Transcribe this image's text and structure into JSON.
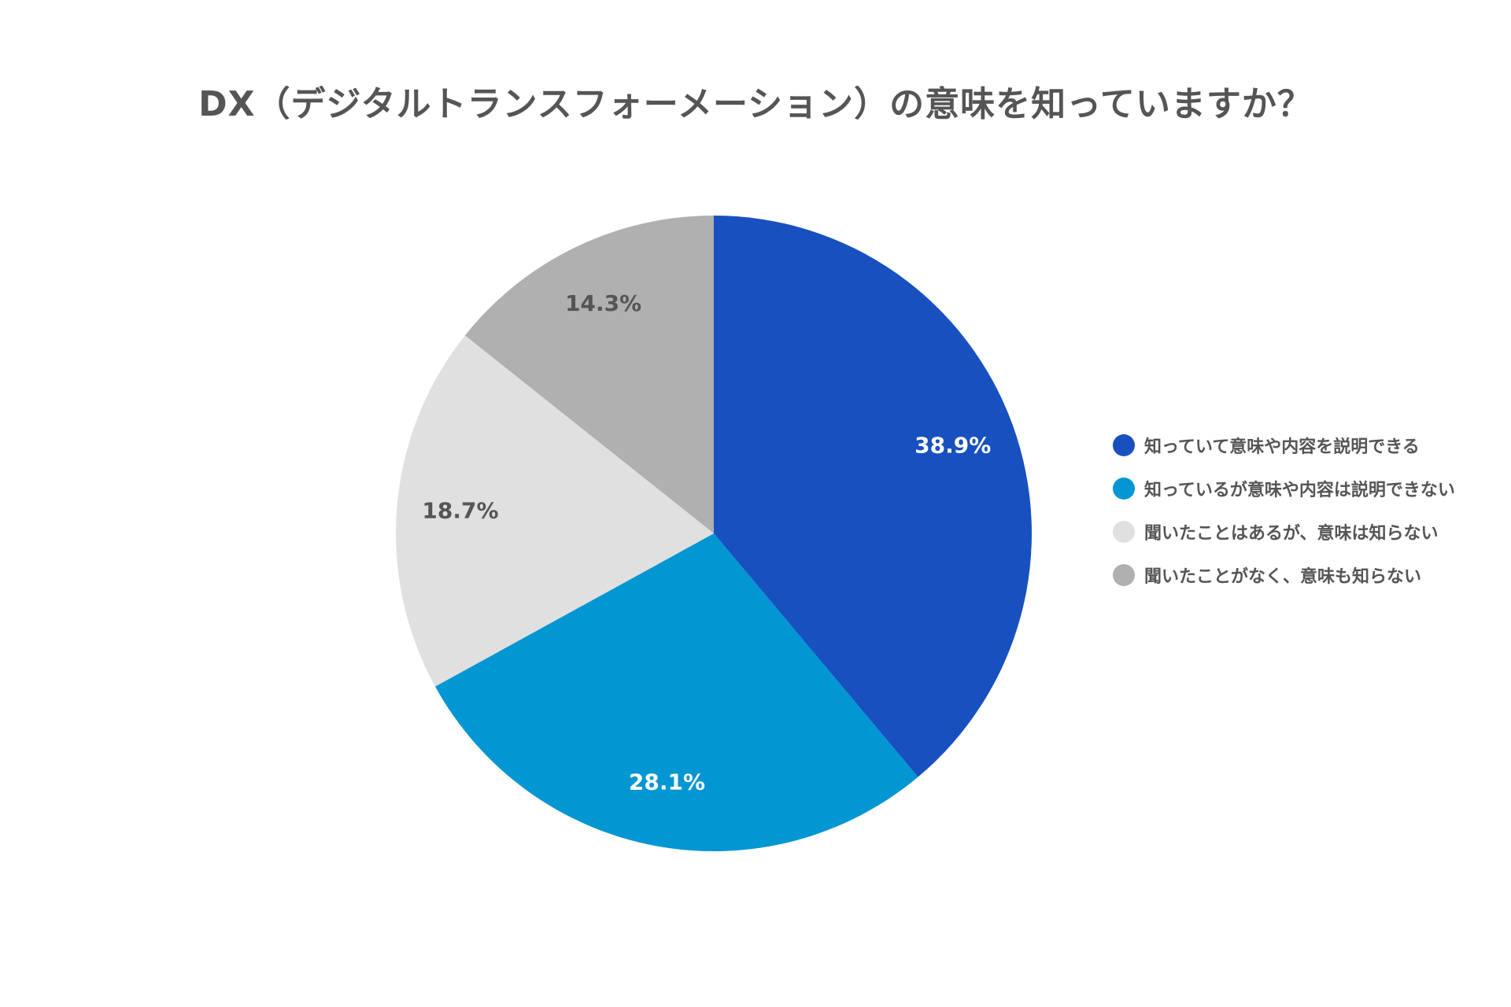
{
  "chart_data": {
    "type": "pie",
    "title": "DX（デジタルトランスフォーメーション）の意味を知っていますか？",
    "categories": [
      "知っていて意味や内容を説明できる",
      "知っているが意味や内容は説明できない",
      "聞いたことはあるが、意味は知らない",
      "聞いたことがなく、意味も知らない"
    ],
    "values": [
      38.9,
      28.1,
      18.7,
      14.3
    ],
    "value_labels": [
      "38.9%",
      "28.1%",
      "18.7%",
      "14.3%"
    ],
    "colors": [
      "#1850C0",
      "#0296D2",
      "#E0E0E0",
      "#B0B0B0"
    ],
    "label_colors": [
      "#FFFFFF",
      "#FFFFFF",
      "#555555",
      "#555555"
    ],
    "start_angle_deg": 0,
    "direction": "clockwise",
    "legend_position": "right"
  }
}
